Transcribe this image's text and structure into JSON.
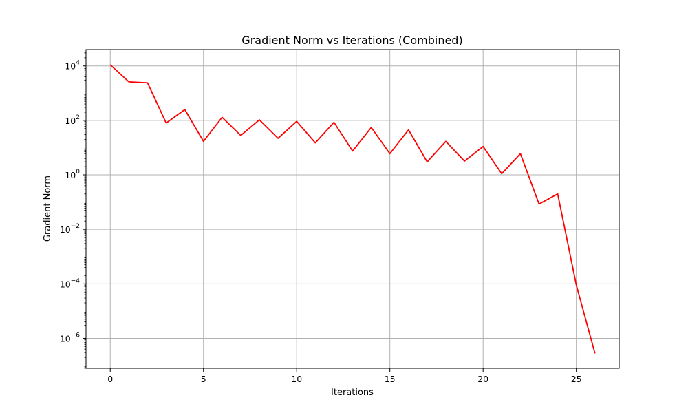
{
  "chart_data": {
    "type": "line",
    "title": "Gradient Norm vs Iterations (Combined)",
    "xlabel": "Iterations",
    "ylabel": "Gradient Norm",
    "yscale": "log",
    "grid": true,
    "xlim": [
      -1.3,
      27.3
    ],
    "ylim_exponent": [
      -7.1,
      4.6
    ],
    "x_ticks": [
      {
        "value": 0,
        "label": "0"
      },
      {
        "value": 5,
        "label": "5"
      },
      {
        "value": 10,
        "label": "10"
      },
      {
        "value": 15,
        "label": "15"
      },
      {
        "value": 20,
        "label": "20"
      },
      {
        "value": 25,
        "label": "25"
      }
    ],
    "y_ticks": [
      {
        "exponent": 4,
        "base": "10",
        "sup": "4"
      },
      {
        "exponent": 2,
        "base": "10",
        "sup": "2"
      },
      {
        "exponent": 0,
        "base": "10",
        "sup": "0"
      },
      {
        "exponent": -2,
        "base": "10",
        "sup": "−2"
      },
      {
        "exponent": -4,
        "base": "10",
        "sup": "−4"
      },
      {
        "exponent": -6,
        "base": "10",
        "sup": "−6"
      }
    ],
    "series": [
      {
        "color": "#ff0000",
        "x": [
          0,
          1,
          2,
          3,
          4,
          5,
          6,
          7,
          8,
          9,
          10,
          11,
          12,
          13,
          14,
          15,
          16,
          17,
          18,
          19,
          20,
          21,
          22,
          23,
          24,
          25,
          26
        ],
        "y": [
          11000,
          2600,
          2400,
          80,
          250,
          17,
          130,
          28,
          105,
          22,
          92,
          15,
          85,
          7.5,
          55,
          6,
          45,
          3,
          17,
          3.2,
          11,
          1.1,
          6,
          0.085,
          0.2,
          9e-05,
          2.8e-07
        ]
      }
    ]
  }
}
